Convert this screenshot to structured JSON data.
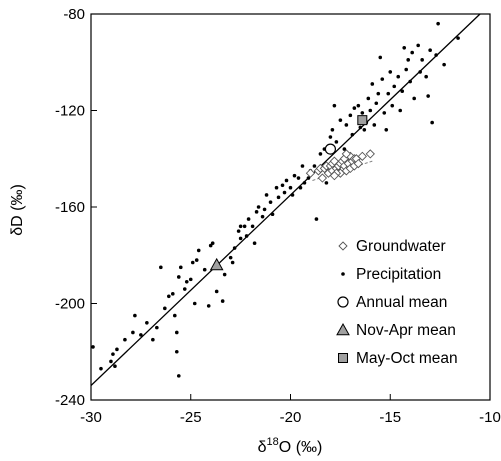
{
  "chart_data": {
    "type": "scatter",
    "title": "",
    "xlabel": {
      "prefix": "δ",
      "sup": "18",
      "suffix": "O (‰)"
    },
    "ylabel": "δD (‰)",
    "xlim": [
      -30,
      -10
    ],
    "ylim": [
      -240,
      -80
    ],
    "xticks": [
      -30,
      -25,
      -20,
      -15,
      -10
    ],
    "yticks": [
      -240,
      -200,
      -160,
      -120,
      -80
    ],
    "grid": false,
    "legend_position": "bottom-right",
    "regression_line": {
      "points": [
        [
          -30,
          -234
        ],
        [
          -10.5,
          -80
        ]
      ]
    },
    "groundwater_trend": {
      "points": [
        [
          -18.9,
          -149
        ],
        [
          -15.9,
          -141
        ]
      ]
    },
    "series": [
      {
        "name": "Groundwater",
        "marker": "diamond-open",
        "points": [
          [
            -19.0,
            -146
          ],
          [
            -18.6,
            -145
          ],
          [
            -18.5,
            -144
          ],
          [
            -18.3,
            -144
          ],
          [
            -18.2,
            -143
          ],
          [
            -18.1,
            -146
          ],
          [
            -18.0,
            -143
          ],
          [
            -17.9,
            -142
          ],
          [
            -17.9,
            -145
          ],
          [
            -17.8,
            -141
          ],
          [
            -17.7,
            -144
          ],
          [
            -17.6,
            -143
          ],
          [
            -17.5,
            -142
          ],
          [
            -17.5,
            -146
          ],
          [
            -17.4,
            -141
          ],
          [
            -17.3,
            -140
          ],
          [
            -17.3,
            -143
          ],
          [
            -17.2,
            -145
          ],
          [
            -17.1,
            -142
          ],
          [
            -17.0,
            -139
          ],
          [
            -17.0,
            -144
          ],
          [
            -16.9,
            -141
          ],
          [
            -16.8,
            -140
          ],
          [
            -16.8,
            -143
          ],
          [
            -16.7,
            -140
          ],
          [
            -16.6,
            -142
          ],
          [
            -18.4,
            -148
          ],
          [
            -17.7,
            -146
          ],
          [
            -16.4,
            -139
          ],
          [
            -16.0,
            -138
          ],
          [
            -17.2,
            -138
          ],
          [
            -17.8,
            -147
          ]
        ]
      },
      {
        "name": "Precipitation",
        "marker": "dot",
        "points": [
          [
            -29.9,
            -218
          ],
          [
            -29.5,
            -227
          ],
          [
            -29.0,
            -224
          ],
          [
            -28.9,
            -221
          ],
          [
            -28.8,
            -226
          ],
          [
            -28.7,
            -219
          ],
          [
            -28.3,
            -215
          ],
          [
            -27.9,
            -212
          ],
          [
            -27.8,
            -205
          ],
          [
            -27.5,
            -213
          ],
          [
            -27.2,
            -208
          ],
          [
            -26.7,
            -210
          ],
          [
            -26.5,
            -185
          ],
          [
            -26.3,
            -202
          ],
          [
            -26.1,
            -197
          ],
          [
            -25.9,
            -196
          ],
          [
            -25.8,
            -205
          ],
          [
            -25.7,
            -212
          ],
          [
            -25.7,
            -220
          ],
          [
            -25.6,
            -230
          ],
          [
            -25.6,
            -189
          ],
          [
            -25.5,
            -185
          ],
          [
            -25.3,
            -194
          ],
          [
            -25.2,
            -191
          ],
          [
            -25.0,
            -190
          ],
          [
            -24.9,
            -183
          ],
          [
            -24.8,
            -200
          ],
          [
            -24.7,
            -182
          ],
          [
            -24.6,
            -178
          ],
          [
            -24.3,
            -186
          ],
          [
            -24.1,
            -201
          ],
          [
            -24.0,
            -176
          ],
          [
            -23.9,
            -175
          ],
          [
            -23.6,
            -185
          ],
          [
            -23.4,
            -199
          ],
          [
            -23.3,
            -188
          ],
          [
            -23.0,
            -181
          ],
          [
            -22.9,
            -183
          ],
          [
            -22.8,
            -177
          ],
          [
            -22.6,
            -170
          ],
          [
            -22.5,
            -173
          ],
          [
            -22.3,
            -168
          ],
          [
            -22.2,
            -172
          ],
          [
            -22.1,
            -165
          ],
          [
            -21.9,
            -168
          ],
          [
            -21.7,
            -162
          ],
          [
            -21.6,
            -160
          ],
          [
            -21.4,
            -164
          ],
          [
            -21.3,
            -161
          ],
          [
            -21.2,
            -155
          ],
          [
            -21.0,
            -158
          ],
          [
            -20.9,
            -163
          ],
          [
            -20.7,
            -152
          ],
          [
            -20.6,
            -156
          ],
          [
            -20.4,
            -151
          ],
          [
            -20.3,
            -154
          ],
          [
            -20.2,
            -149
          ],
          [
            -20.0,
            -152
          ],
          [
            -19.8,
            -147
          ],
          [
            -19.6,
            -148
          ],
          [
            -19.5,
            -152
          ],
          [
            -19.3,
            -150
          ],
          [
            -19.1,
            -148
          ],
          [
            -19.0,
            -145
          ],
          [
            -18.8,
            -143
          ],
          [
            -18.7,
            -165
          ],
          [
            -18.5,
            -138
          ],
          [
            -18.3,
            -136
          ],
          [
            -18.2,
            -150
          ],
          [
            -18.0,
            -131
          ],
          [
            -17.9,
            -128
          ],
          [
            -17.7,
            -133
          ],
          [
            -17.5,
            -124
          ],
          [
            -17.3,
            -136
          ],
          [
            -17.2,
            -126
          ],
          [
            -17.0,
            -122
          ],
          [
            -16.9,
            -130
          ],
          [
            -16.8,
            -119
          ],
          [
            -16.6,
            -118
          ],
          [
            -16.5,
            -127
          ],
          [
            -16.4,
            -121
          ],
          [
            -16.2,
            -125
          ],
          [
            -16.1,
            -115
          ],
          [
            -16.0,
            -120
          ],
          [
            -15.9,
            -109
          ],
          [
            -15.8,
            -126
          ],
          [
            -15.7,
            -117
          ],
          [
            -15.6,
            -113
          ],
          [
            -15.4,
            -107
          ],
          [
            -15.3,
            -121
          ],
          [
            -15.2,
            -128
          ],
          [
            -15.1,
            -113
          ],
          [
            -15.0,
            -104
          ],
          [
            -14.9,
            -118
          ],
          [
            -14.8,
            -110
          ],
          [
            -14.6,
            -106
          ],
          [
            -14.5,
            -120
          ],
          [
            -14.4,
            -112
          ],
          [
            -14.2,
            -103
          ],
          [
            -14.1,
            -99
          ],
          [
            -14.0,
            -108
          ],
          [
            -13.9,
            -96
          ],
          [
            -13.8,
            -115
          ],
          [
            -13.6,
            -93
          ],
          [
            -13.5,
            -104
          ],
          [
            -13.4,
            -99
          ],
          [
            -13.2,
            -106
          ],
          [
            -13.1,
            -114
          ],
          [
            -13.0,
            -95
          ],
          [
            -12.9,
            -125
          ],
          [
            -12.7,
            -97
          ],
          [
            -12.6,
            -84
          ],
          [
            -12.3,
            -101
          ],
          [
            -11.6,
            -90
          ],
          [
            -14.3,
            -94
          ],
          [
            -15.5,
            -98
          ],
          [
            -17.8,
            -118
          ],
          [
            -16.3,
            -128
          ],
          [
            -19.9,
            -155
          ],
          [
            -21.8,
            -175
          ],
          [
            -23.7,
            -195
          ],
          [
            -26.9,
            -215
          ],
          [
            -22.5,
            -168
          ],
          [
            -19.4,
            -143
          ]
        ]
      },
      {
        "name": "Annual mean",
        "marker": "circle-open",
        "points": [
          [
            -18.0,
            -136
          ]
        ]
      },
      {
        "name": "Nov-Apr mean",
        "marker": "triangle",
        "points": [
          [
            -23.7,
            -184
          ]
        ]
      },
      {
        "name": "May-Oct mean",
        "marker": "square",
        "points": [
          [
            -16.4,
            -124
          ]
        ]
      }
    ]
  },
  "legend": {
    "entries": [
      {
        "label": "Groundwater",
        "marker": "diamond-open"
      },
      {
        "label": "Precipitation",
        "marker": "dot"
      },
      {
        "label": "Annual mean",
        "marker": "circle-open"
      },
      {
        "label": "Nov-Apr mean",
        "marker": "triangle"
      },
      {
        "label": "May-Oct mean",
        "marker": "square"
      }
    ]
  },
  "colors": {
    "axis": "#000000",
    "precipitation": "#000000",
    "groundwater_stroke": "#555555",
    "marker_fill": "#a0a0a0",
    "trend_line": "#808080"
  }
}
